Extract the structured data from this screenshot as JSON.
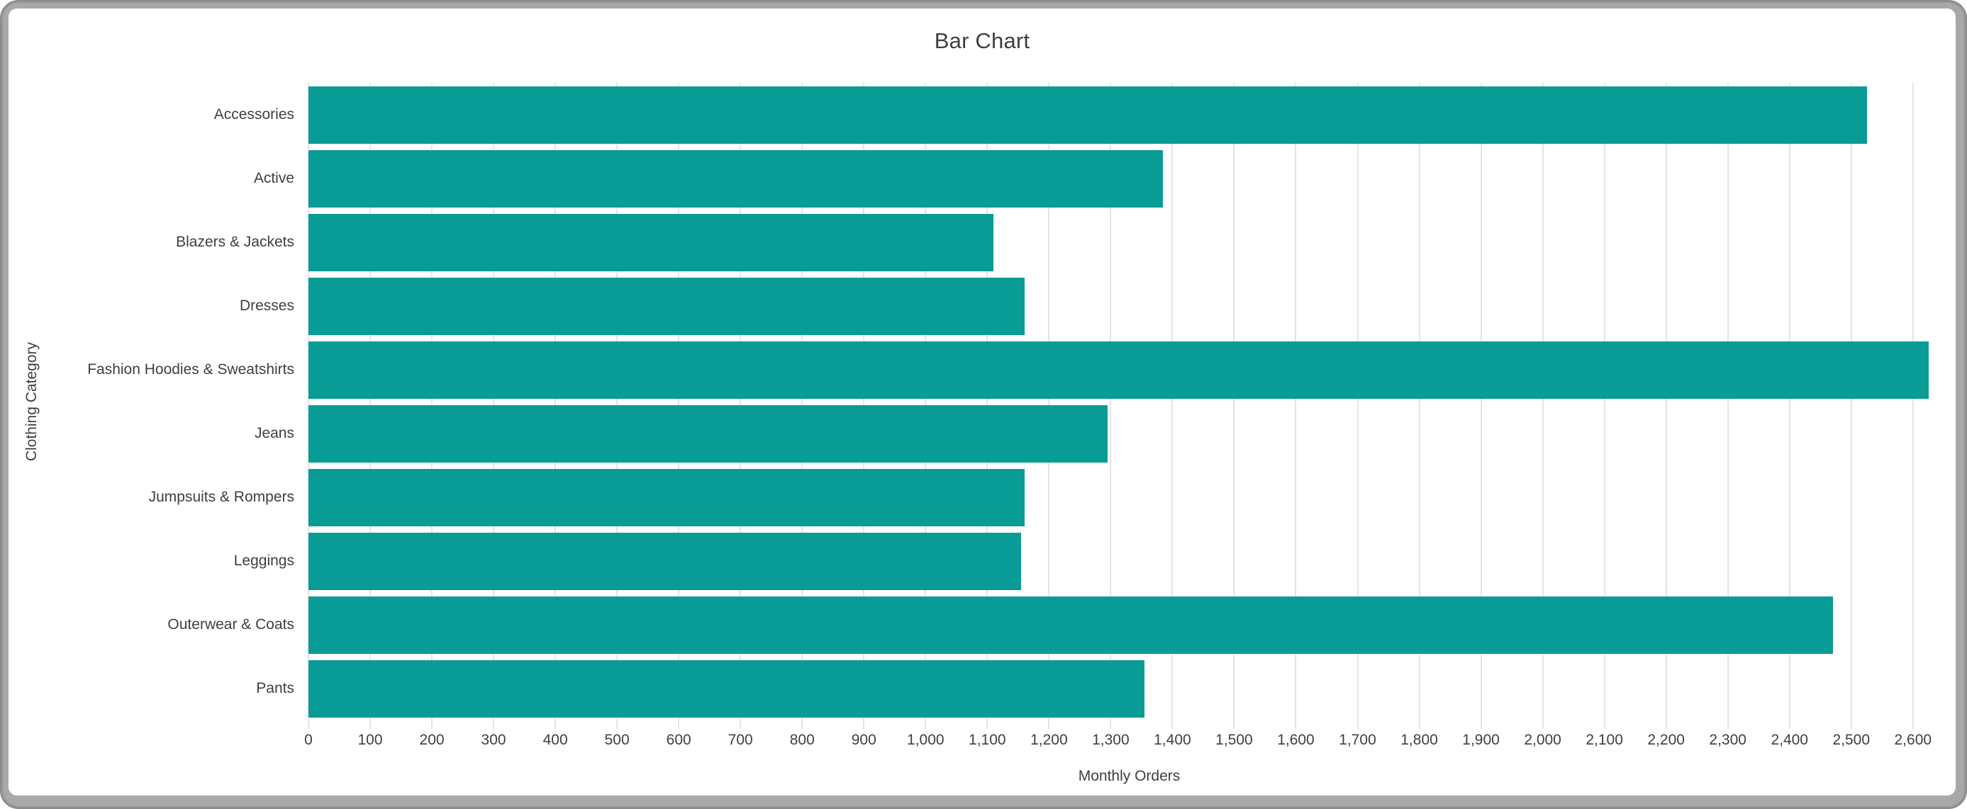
{
  "window": {
    "frame_color": "#a8a8a8",
    "card_background": "#ffffff"
  },
  "chart_data": {
    "type": "bar",
    "orientation": "horizontal",
    "title": "Bar Chart",
    "xlabel": "Monthly Orders",
    "ylabel": "Clothing Category",
    "categories": [
      "Accessories",
      "Active",
      "Blazers & Jackets",
      "Dresses",
      "Fashion Hoodies & Sweatshirts",
      "Jeans",
      "Jumpsuits & Rompers",
      "Leggings",
      "Outerwear & Coats",
      "Pants"
    ],
    "values": [
      2525,
      1385,
      1110,
      1160,
      2625,
      1295,
      1160,
      1155,
      2470,
      1355
    ],
    "xlim": [
      0,
      2660
    ],
    "xticks": [
      0,
      100,
      200,
      300,
      400,
      500,
      600,
      700,
      800,
      900,
      1000,
      1100,
      1200,
      1300,
      1400,
      1500,
      1600,
      1700,
      1800,
      1900,
      2000,
      2100,
      2200,
      2300,
      2400,
      2500,
      2600
    ],
    "xtick_labels": [
      "0",
      "100",
      "200",
      "300",
      "400",
      "500",
      "600",
      "700",
      "800",
      "900",
      "1,000",
      "1,100",
      "1,200",
      "1,300",
      "1,400",
      "1,500",
      "1,600",
      "1,700",
      "1,800",
      "1,900",
      "2,000",
      "2,100",
      "2,200",
      "2,300",
      "2,400",
      "2,500",
      "2,600"
    ],
    "grid": true,
    "legend": "none",
    "bar_color": "#099b96",
    "gridline_color": "#e4e4e4",
    "text_color": "#3c4043"
  }
}
